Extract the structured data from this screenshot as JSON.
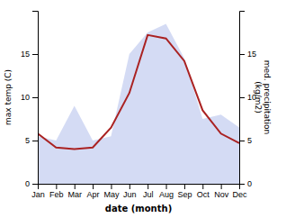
{
  "chart_data": {
    "type": "line",
    "categories": [
      "Jan",
      "Feb",
      "Mar",
      "Apr",
      "May",
      "Jun",
      "Jul",
      "Aug",
      "Sep",
      "Oct",
      "Nov",
      "Dec"
    ],
    "xlabel": "date (month)",
    "ylabel": "max temp (C)",
    "y2label": "med. precipitation\n(kg/m2)",
    "ylim": [
      0,
      20
    ],
    "yticks": [
      0,
      5,
      10,
      15
    ],
    "y2lim": [
      0,
      20
    ],
    "y2ticks": [
      0,
      5,
      10,
      15
    ],
    "grid": false,
    "series": [
      {
        "type": "area",
        "axis": "y2",
        "color": "#c5cff0",
        "values": [
          5.5,
          5.0,
          9.0,
          5.0,
          5.5,
          15.0,
          17.5,
          18.5,
          14.5,
          7.5,
          8.0,
          6.5
        ]
      },
      {
        "type": "line",
        "color": "#aa2222",
        "values": [
          5.8,
          4.2,
          4.0,
          4.2,
          6.5,
          10.5,
          17.2,
          16.8,
          14.2,
          8.5,
          5.8,
          4.7
        ]
      }
    ]
  }
}
